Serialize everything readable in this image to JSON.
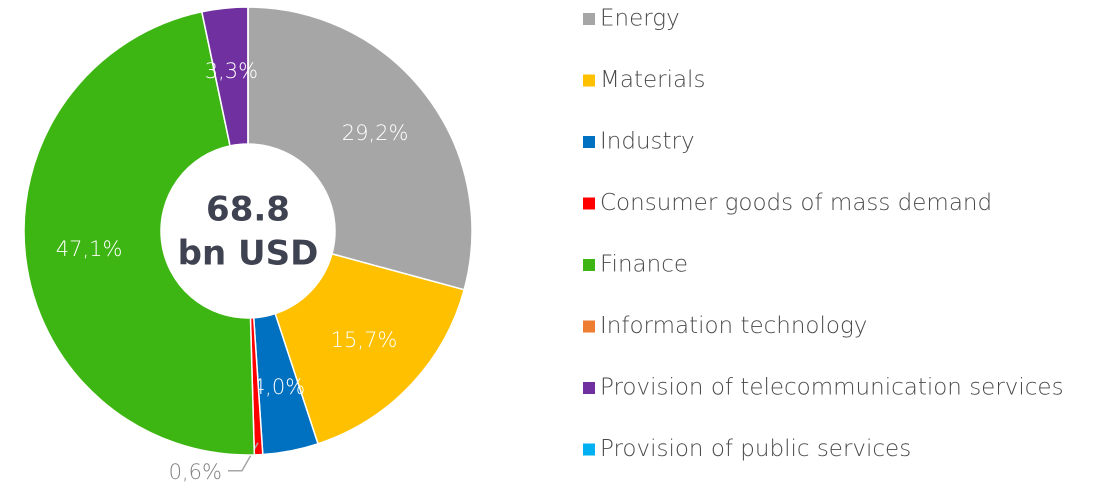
{
  "chart_data": {
    "type": "donut",
    "categories": [
      "Energy",
      "Materials",
      "Industry",
      "Consumer goods of mass demand",
      "Finance",
      "Information technology",
      "Provision of telecommunication services",
      "Provision of public services"
    ],
    "values": [
      29.2,
      15.7,
      4.0,
      0.6,
      47.1,
      0,
      3.3,
      0
    ],
    "value_labels": [
      "29,2%",
      "15,7%",
      "4,0%",
      "0,6%",
      "47,1%",
      null,
      "3,3%",
      null
    ],
    "colors": [
      "#a6a6a6",
      "#ffc000",
      "#0070c0",
      "#ff0000",
      "#3db512",
      "#ed7d31",
      "#7030a0",
      "#00b0f0"
    ],
    "center_text": [
      "68.8",
      "bn USD"
    ],
    "legend": "right"
  }
}
